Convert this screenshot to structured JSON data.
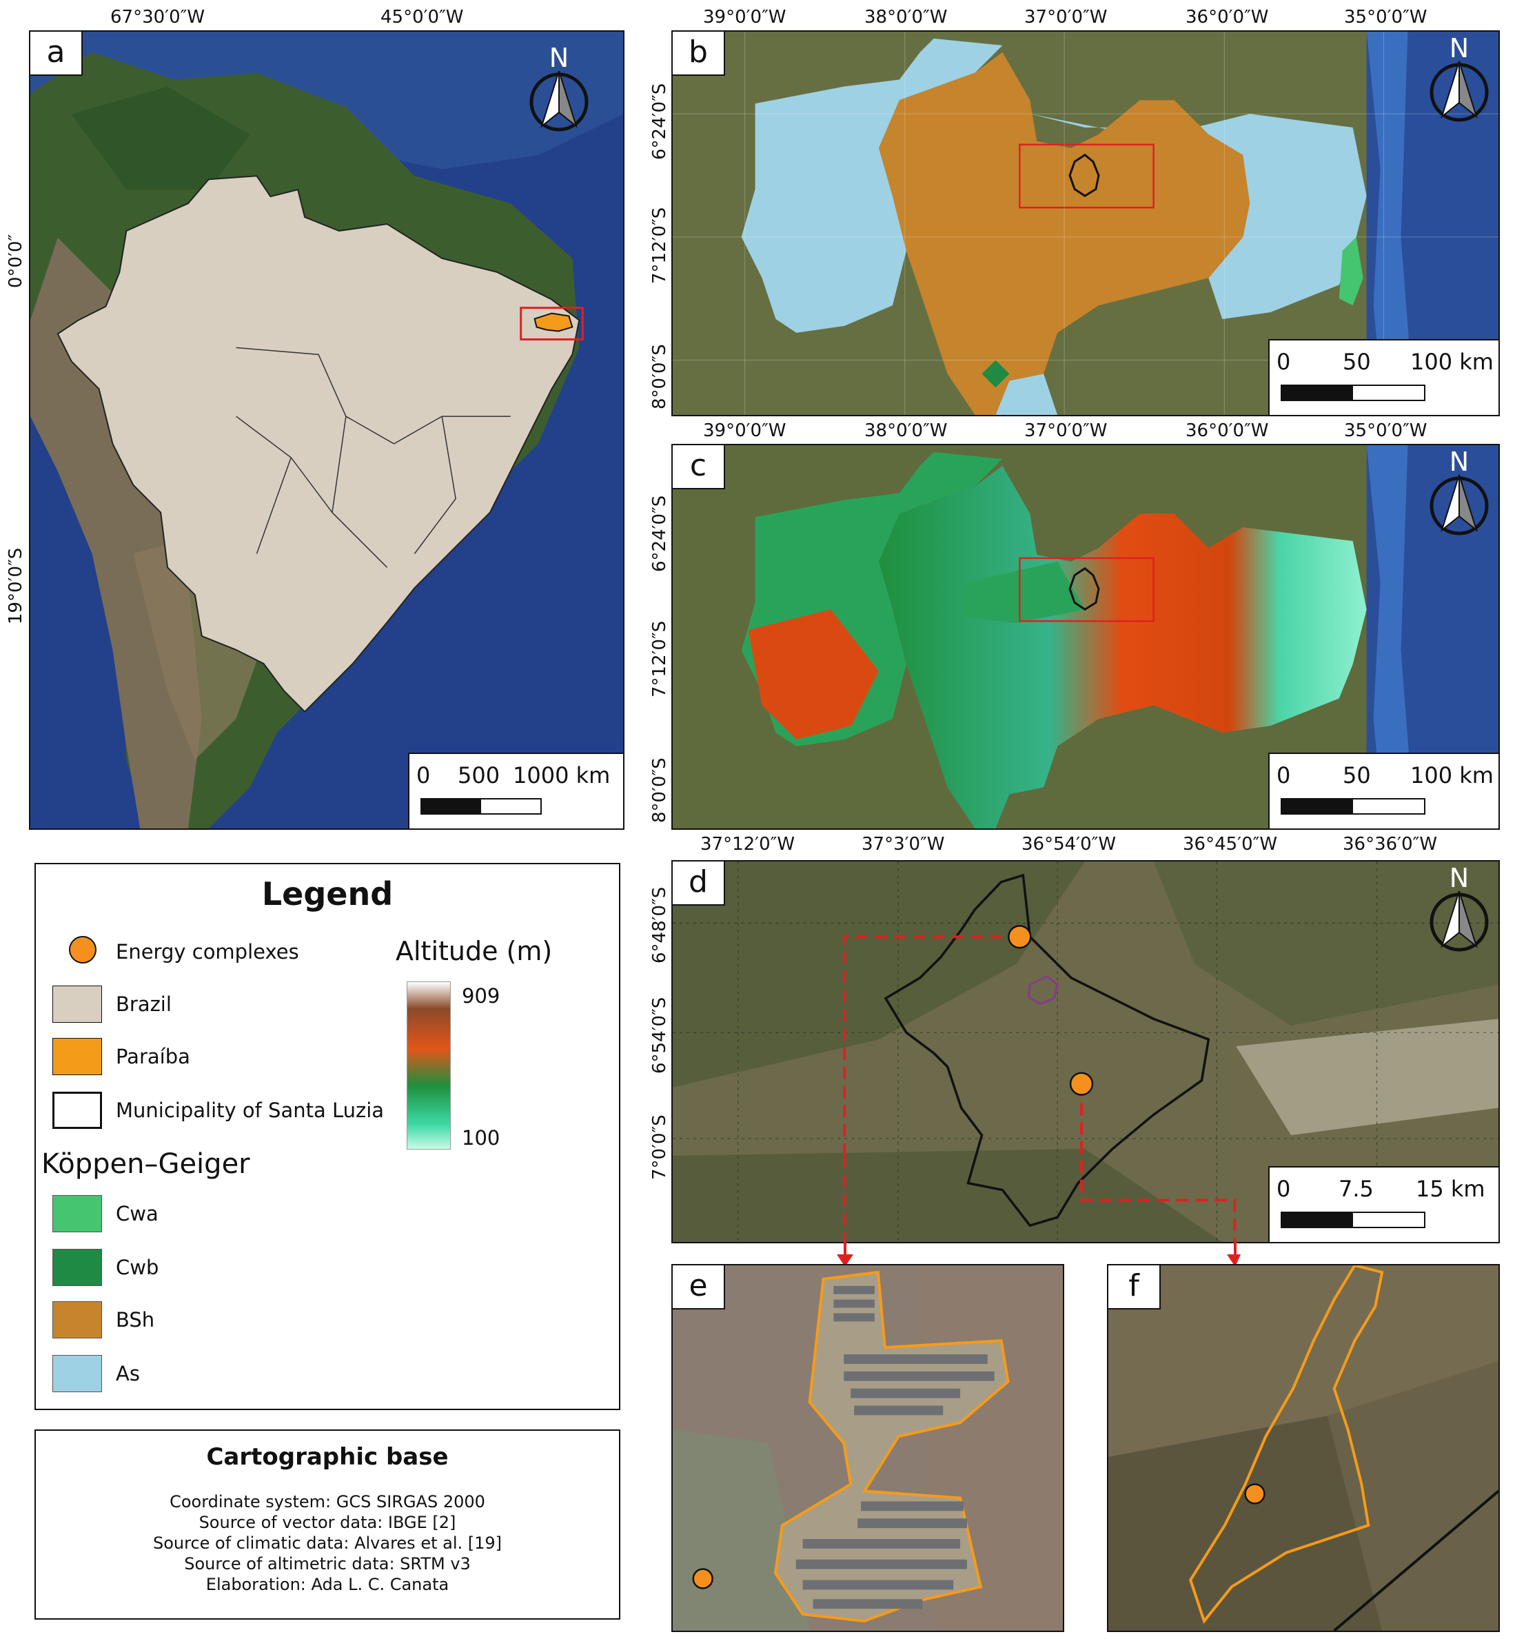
{
  "panels": {
    "a": {
      "label": "a",
      "top_ticks": [
        "67°30′0″W",
        "45°0′0″W"
      ],
      "left_ticks": [
        "0°0′0″",
        "19°0′0″S"
      ],
      "scale": {
        "zero": "0",
        "mid": "500",
        "end": "1000 km"
      },
      "north": "N"
    },
    "b": {
      "label": "b",
      "top_ticks": [
        "39°0′0″W",
        "38°0′0″W",
        "37°0′0″W",
        "36°0′0″W",
        "35°0′0″W"
      ],
      "left_ticks": [
        "6°24′0″S",
        "7°12′0″S",
        "8°0′0″S"
      ],
      "scale": {
        "zero": "0",
        "mid": "50",
        "end": "100 km"
      },
      "north": "N"
    },
    "c": {
      "label": "c",
      "top_ticks": [
        "39°0′0″W",
        "38°0′0″W",
        "37°0′0″W",
        "36°0′0″W",
        "35°0′0″W"
      ],
      "left_ticks": [
        "6°24′0″S",
        "7°12′0″S",
        "8°0′0″S"
      ],
      "scale": {
        "zero": "0",
        "mid": "50",
        "end": "100 km"
      },
      "north": "N"
    },
    "d": {
      "label": "d",
      "top_ticks": [
        "37°12′0″W",
        "37°3′0″W",
        "36°54′0″W",
        "36°45′0″W",
        "36°36′0″W"
      ],
      "left_ticks": [
        "6°48′0″S",
        "6°54′0″S",
        "7°0′0″S"
      ],
      "scale": {
        "zero": "0",
        "mid": "7.5",
        "end": "15 km"
      },
      "north": "N"
    },
    "e": {
      "label": "e"
    },
    "f": {
      "label": "f"
    }
  },
  "legend": {
    "title": "Legend",
    "energy": "Energy complexes",
    "brazil": "Brazil",
    "paraiba": "Paraíba",
    "municipality": "Municipality of Santa Luzia",
    "altitude_title": "Altitude (m)",
    "alt_max": "909",
    "alt_min": "100",
    "koppen_title": "Köppen–Geiger",
    "koppen": [
      "Cwa",
      "Cwb",
      "BSh",
      "As"
    ]
  },
  "cartographic": {
    "title": "Cartographic base",
    "lines": [
      "Coordinate system: GCS SIRGAS 2000",
      "Source of vector data: IBGE [2]",
      "Source of climatic data: Alvares et al. [19]",
      "Source of altimetric data: SRTM v3",
      "Elaboration: Ada L. C. Canata"
    ]
  },
  "colors": {
    "brazil": "#d8cfc1",
    "paraiba": "#f59b1a",
    "cwa": "#45c56f",
    "cwb": "#1e8a43",
    "bsh": "#c6842c",
    "as": "#9ed1e3",
    "energy": "#f5901e",
    "highlight": "#e02020"
  }
}
